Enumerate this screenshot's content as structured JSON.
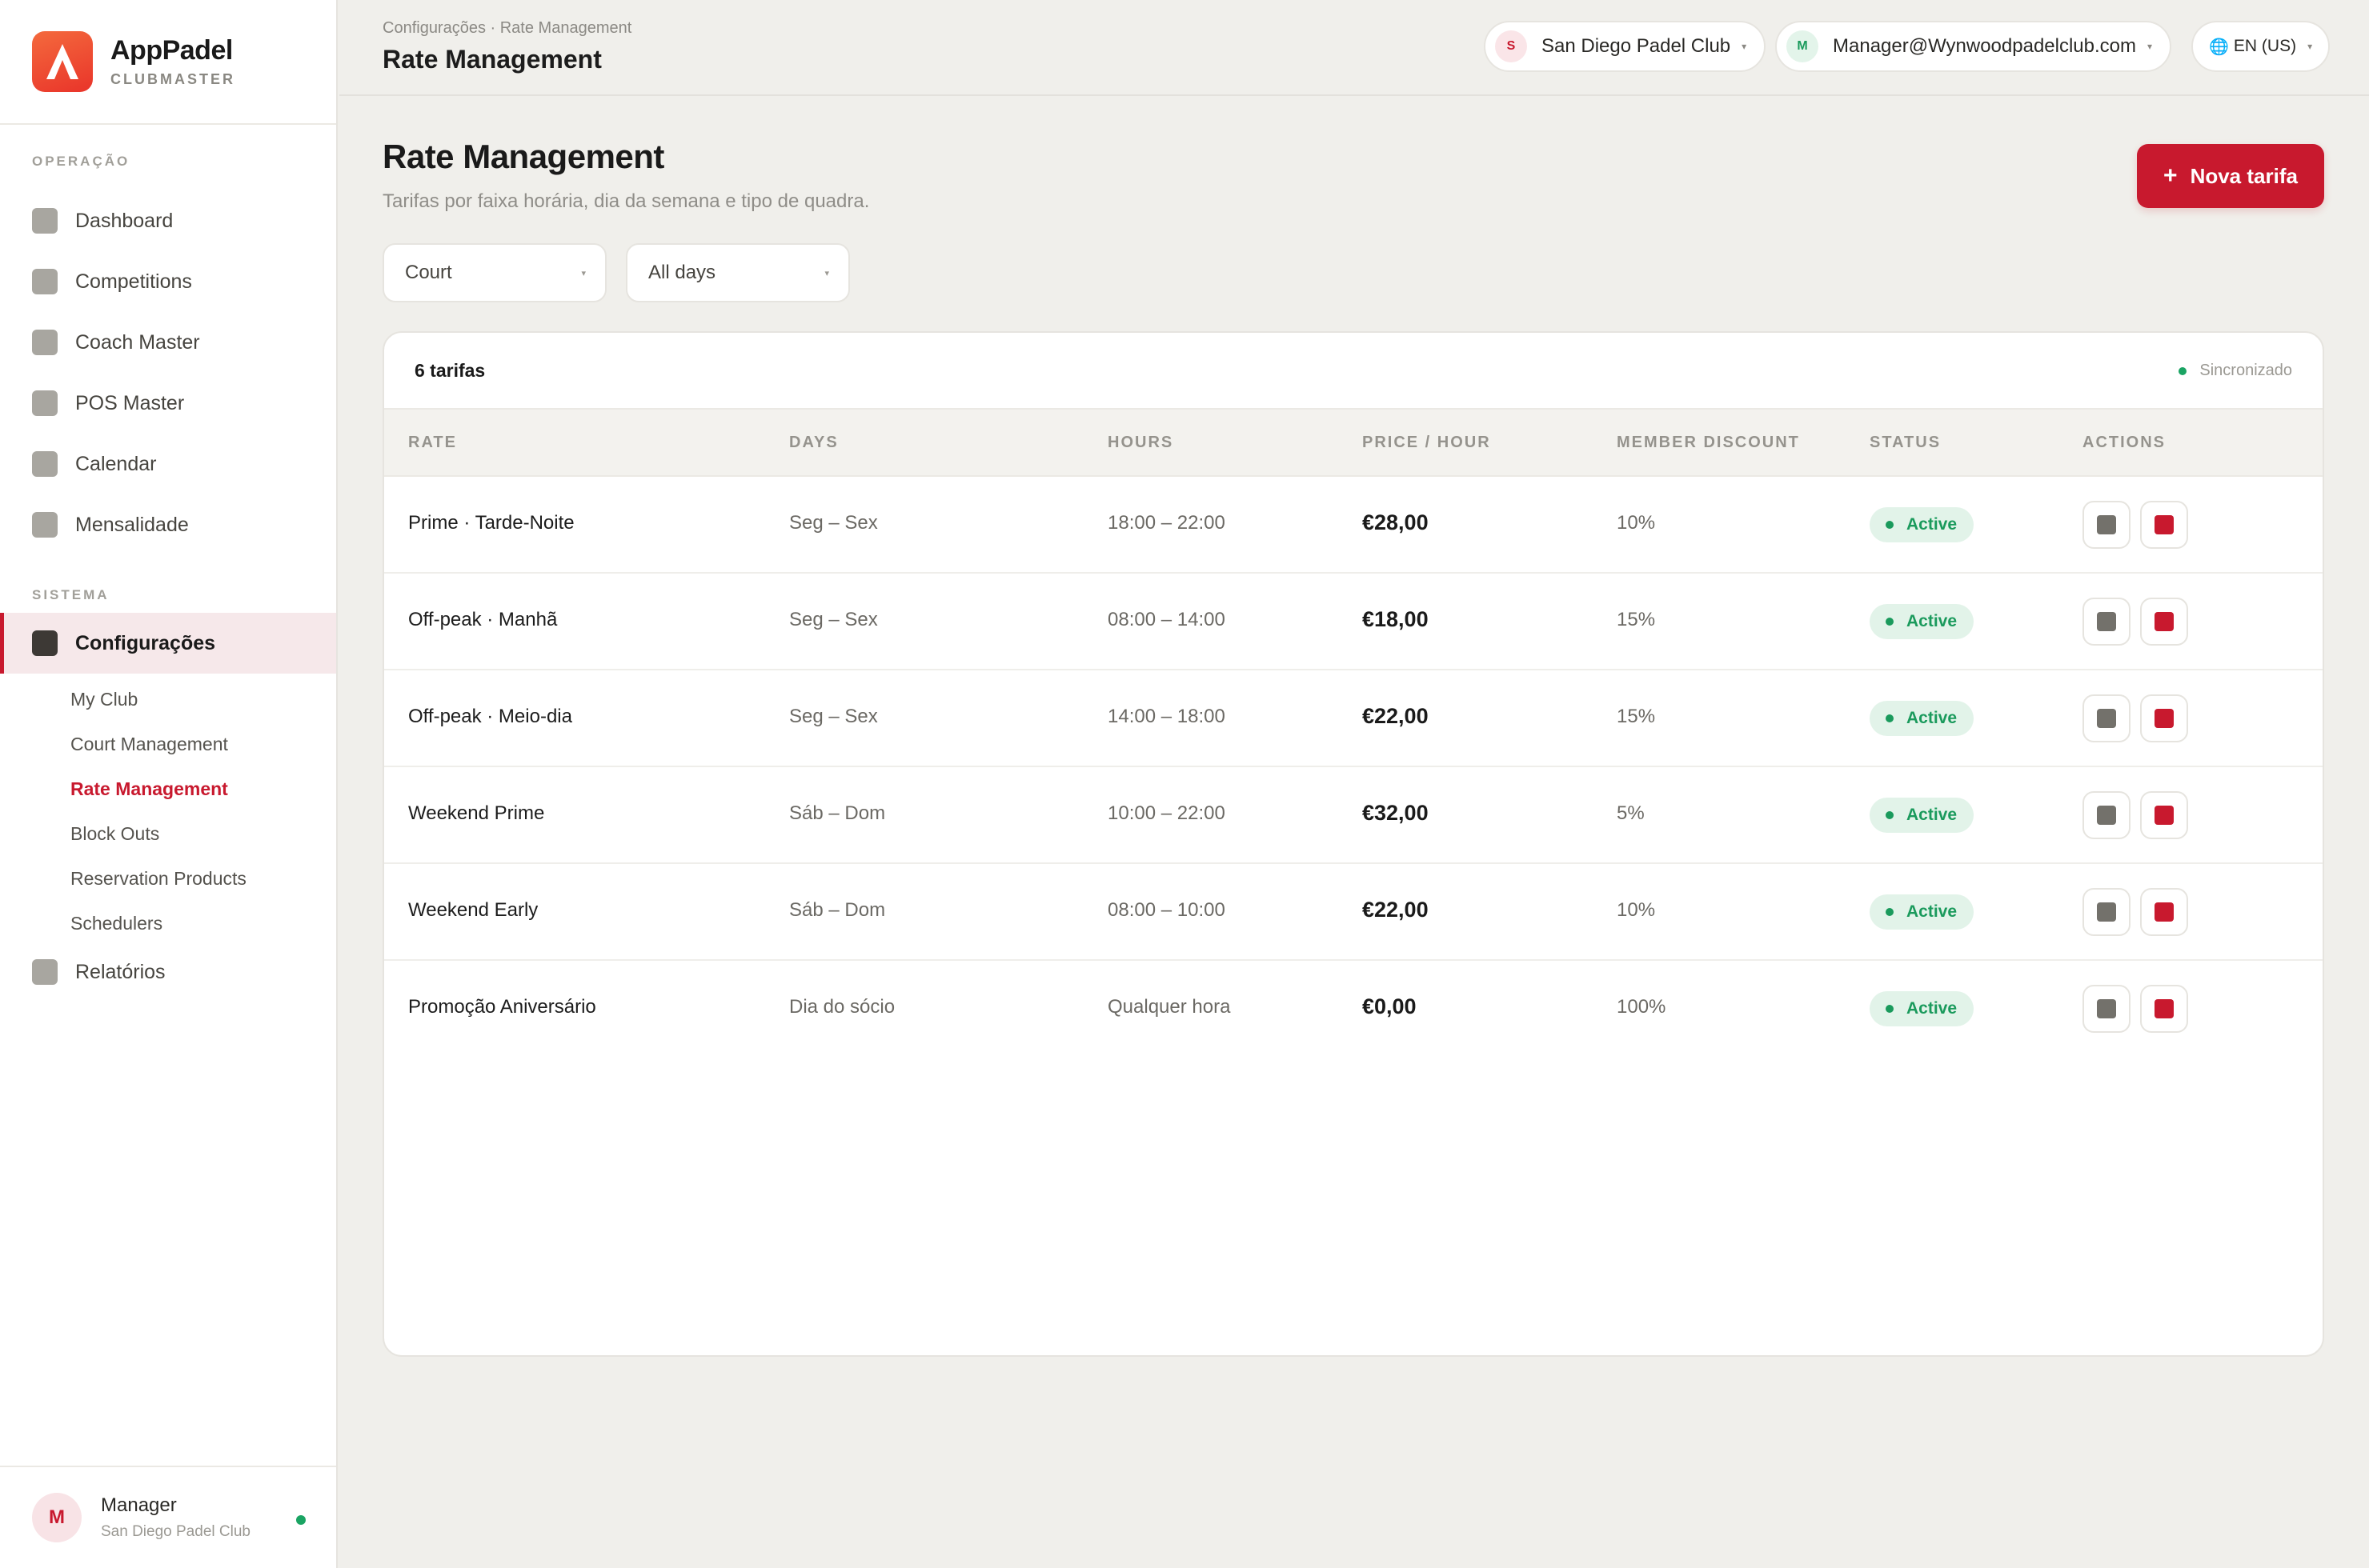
{
  "brand": {
    "name": "AppPadel",
    "sub": "CLUBMASTER"
  },
  "sidebar": {
    "section_operation": "OPERAÇÃO",
    "section_system": "SISTEMA",
    "items": [
      {
        "label": "Dashboard"
      },
      {
        "label": "Competitions"
      },
      {
        "label": "Coach Master"
      },
      {
        "label": "POS Master"
      },
      {
        "label": "Calendar"
      },
      {
        "label": "Mensalidade"
      }
    ],
    "config": {
      "label": "Configurações"
    },
    "sub_items": [
      {
        "label": "My Club"
      },
      {
        "label": "Court Management"
      },
      {
        "label": "Rate Management"
      },
      {
        "label": "Block Outs"
      },
      {
        "label": "Reservation Products"
      },
      {
        "label": "Schedulers"
      }
    ],
    "reports": {
      "label": "Relatórios"
    },
    "footer": {
      "avatar": "M",
      "name": "Manager",
      "club": "San Diego Padel Club"
    }
  },
  "topbar": {
    "breadcrumb": "Configurações · Rate Management",
    "title": "Rate Management",
    "club": {
      "badge": "S",
      "label": "San Diego Padel Club"
    },
    "user": {
      "badge": "M",
      "label": "Manager@Wynwoodpadelclub.com"
    },
    "lang": {
      "label": "EN (US)"
    },
    "caret": "▾",
    "globe": "🌐"
  },
  "main": {
    "title": "Rate Management",
    "subtitle": "Tarifas por faixa horária, dia da semana e tipo de quadra.",
    "new_button": {
      "plus": "+",
      "label": "Nova tarifa"
    },
    "filters": {
      "court": "Court",
      "days": "All days"
    },
    "table": {
      "count": "6 tarifas",
      "sync": "Sincronizado",
      "headers": {
        "rate": "RATE",
        "days": "DAYS",
        "hours": "HOURS",
        "price": "PRICE / HOUR",
        "discount": "MEMBER DISCOUNT",
        "status": "STATUS",
        "actions": "ACTIONS"
      },
      "rows": [
        {
          "rate": "Prime · Tarde-Noite",
          "days": "Seg – Sex",
          "hours": "18:00 – 22:00",
          "price": "€28,00",
          "discount": "10%",
          "status": "Active"
        },
        {
          "rate": "Off-peak · Manhã",
          "days": "Seg – Sex",
          "hours": "08:00 – 14:00",
          "price": "€18,00",
          "discount": "15%",
          "status": "Active"
        },
        {
          "rate": "Off-peak · Meio-dia",
          "days": "Seg – Sex",
          "hours": "14:00 – 18:00",
          "price": "€22,00",
          "discount": "15%",
          "status": "Active"
        },
        {
          "rate": "Weekend Prime",
          "days": "Sáb – Dom",
          "hours": "10:00 – 22:00",
          "price": "€32,00",
          "discount": "5%",
          "status": "Active"
        },
        {
          "rate": "Weekend Early",
          "days": "Sáb – Dom",
          "hours": "08:00 – 10:00",
          "price": "€22,00",
          "discount": "10%",
          "status": "Active"
        },
        {
          "rate": "Promoção Aniversário",
          "days": "Dia do sócio",
          "hours": "Qualquer hora",
          "price": "€0,00",
          "discount": "100%",
          "status": "Active"
        }
      ]
    }
  },
  "colors": {
    "accent": "#c8192e",
    "success": "#1a9a5c",
    "background": "#f0efeb"
  }
}
